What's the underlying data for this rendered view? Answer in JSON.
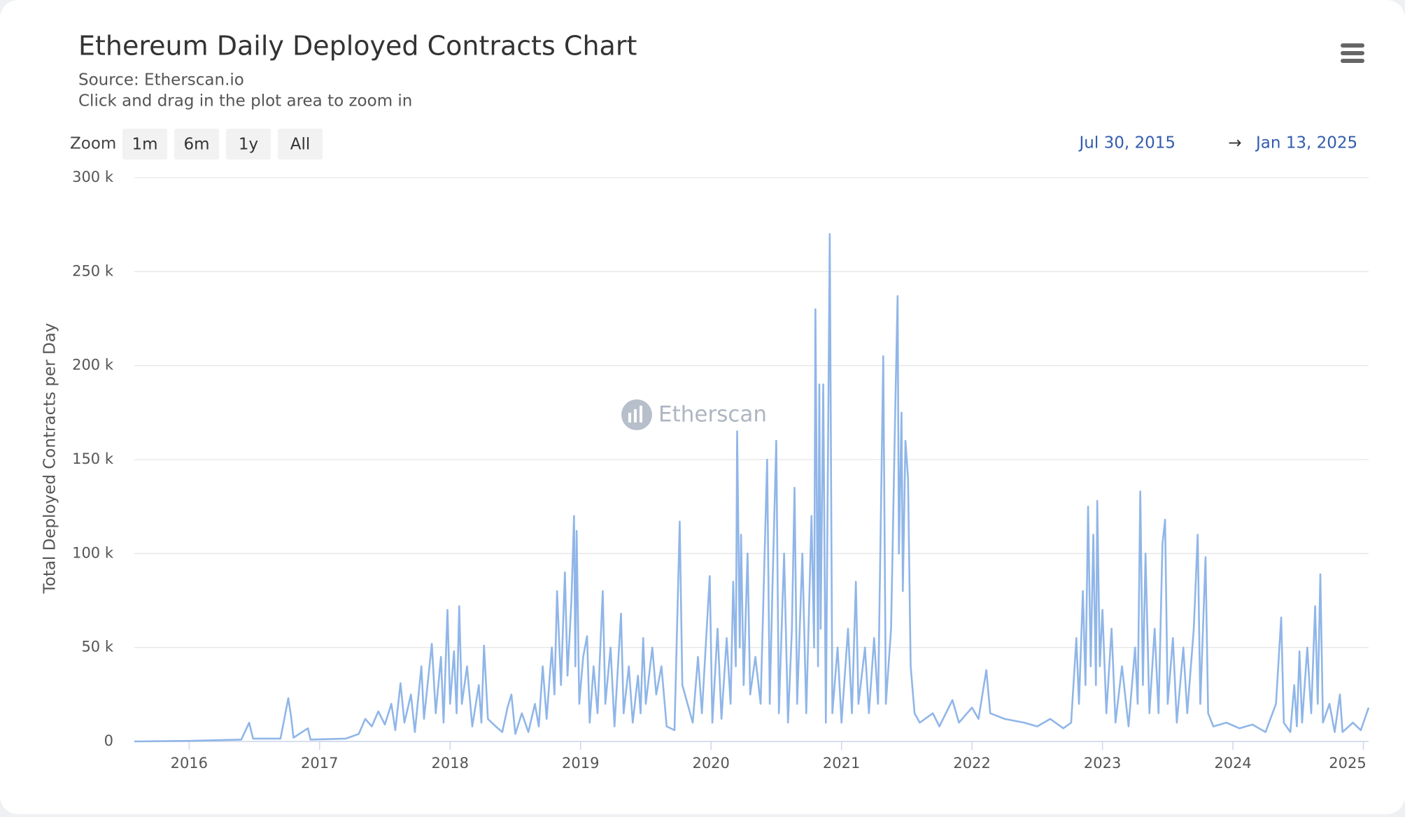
{
  "chart_data": {
    "type": "line",
    "title": "Ethereum Daily Deployed Contracts Chart",
    "subtitle": [
      "Source: Etherscan.io",
      "Click and drag in the plot area to zoom in"
    ],
    "range_selector": {
      "label": "Zoom",
      "buttons": [
        "1m",
        "6m",
        "1y",
        "All"
      ],
      "from": "Jul 30, 2015",
      "arrow": "→",
      "to": "Jan 13, 2025"
    },
    "watermark": "Etherscan",
    "y_label": "Total Deployed Contracts per Day",
    "color": "#90b6e8",
    "grid": true,
    "xlim": [
      2015.58,
      2025.04
    ],
    "xticks": [
      2016,
      2017,
      2018,
      2019,
      2020,
      2021,
      2022,
      2023,
      2024,
      2025
    ],
    "ylim": [
      0,
      300000
    ],
    "yticks": [
      0,
      {
        "value": 50000,
        "label": "50 k"
      },
      {
        "value": 100000,
        "label": "100 k"
      },
      {
        "value": 150000,
        "label": "150 k"
      },
      {
        "value": 200000,
        "label": "200 k"
      },
      {
        "value": 250000,
        "label": "250 k"
      },
      {
        "value": 300000,
        "label": "300 k"
      }
    ],
    "x": [
      2015.58,
      2016.0,
      2016.4,
      2016.46,
      2016.49,
      2016.7,
      2016.76,
      2016.78,
      2016.8,
      2016.91,
      2016.93,
      2017.2,
      2017.3,
      2017.35,
      2017.4,
      2017.45,
      2017.5,
      2017.55,
      2017.58,
      2017.62,
      2017.65,
      2017.7,
      2017.73,
      2017.78,
      2017.8,
      2017.86,
      2017.89,
      2017.93,
      2017.95,
      2017.98,
      2018.0,
      2018.03,
      2018.05,
      2018.07,
      2018.09,
      2018.13,
      2018.17,
      2018.22,
      2018.24,
      2018.26,
      2018.29,
      2018.35,
      2018.4,
      2018.44,
      2018.47,
      2018.5,
      2018.55,
      2018.6,
      2018.65,
      2018.68,
      2018.71,
      2018.74,
      2018.78,
      2018.8,
      2018.82,
      2018.85,
      2018.88,
      2018.9,
      2018.93,
      2018.95,
      2018.96,
      2018.97,
      2018.99,
      2019.02,
      2019.05,
      2019.07,
      2019.1,
      2019.13,
      2019.17,
      2019.19,
      2019.23,
      2019.26,
      2019.31,
      2019.33,
      2019.37,
      2019.4,
      2019.44,
      2019.46,
      2019.48,
      2019.5,
      2019.55,
      2019.58,
      2019.62,
      2019.66,
      2019.72,
      2019.76,
      2019.78,
      2019.82,
      2019.86,
      2019.9,
      2019.93,
      2019.99,
      2020.01,
      2020.05,
      2020.08,
      2020.12,
      2020.15,
      2020.17,
      2020.19,
      2020.2,
      2020.22,
      2020.23,
      2020.25,
      2020.28,
      2020.3,
      2020.34,
      2020.38,
      2020.43,
      2020.45,
      2020.47,
      2020.5,
      2020.52,
      2020.56,
      2020.59,
      2020.62,
      2020.64,
      2020.66,
      2020.7,
      2020.73,
      2020.77,
      2020.79,
      2020.8,
      2020.82,
      2020.83,
      2020.84,
      2020.86,
      2020.88,
      2020.91,
      2020.93,
      2020.97,
      2021.0,
      2021.05,
      2021.08,
      2021.11,
      2021.13,
      2021.18,
      2021.21,
      2021.25,
      2021.28,
      2021.32,
      2021.34,
      2021.38,
      2021.41,
      2021.43,
      2021.44,
      2021.46,
      2021.47,
      2021.49,
      2021.51,
      2021.53,
      2021.56,
      2021.6,
      2021.7,
      2021.75,
      2021.85,
      2021.9,
      2022.0,
      2022.05,
      2022.11,
      2022.14,
      2022.25,
      2022.4,
      2022.5,
      2022.6,
      2022.7,
      2022.76,
      2022.8,
      2022.82,
      2022.85,
      2022.87,
      2022.89,
      2022.91,
      2022.93,
      2022.95,
      2022.96,
      2022.98,
      2023.0,
      2023.03,
      2023.07,
      2023.1,
      2023.15,
      2023.2,
      2023.25,
      2023.27,
      2023.29,
      2023.31,
      2023.33,
      2023.36,
      2023.4,
      2023.43,
      2023.46,
      2023.48,
      2023.5,
      2023.54,
      2023.57,
      2023.62,
      2023.65,
      2023.7,
      2023.73,
      2023.75,
      2023.79,
      2023.81,
      2023.85,
      2023.95,
      2024.05,
      2024.15,
      2024.25,
      2024.33,
      2024.37,
      2024.39,
      2024.44,
      2024.47,
      2024.49,
      2024.51,
      2024.53,
      2024.57,
      2024.6,
      2024.63,
      2024.65,
      2024.67,
      2024.69,
      2024.74,
      2024.78,
      2024.82,
      2024.84,
      2024.92,
      2024.98,
      2025.04
    ],
    "values": [
      0,
      300,
      1000,
      10000,
      1500,
      1500,
      23000,
      14000,
      2000,
      7000,
      1000,
      1500,
      4000,
      12000,
      8000,
      16000,
      9000,
      20000,
      6000,
      31000,
      10000,
      25000,
      5000,
      40000,
      12000,
      52000,
      15000,
      45000,
      10000,
      70000,
      20000,
      48000,
      15000,
      72000,
      20000,
      40000,
      8000,
      30000,
      10000,
      51000,
      12000,
      8000,
      5000,
      18000,
      25000,
      4000,
      15000,
      5000,
      20000,
      8000,
      40000,
      12000,
      50000,
      25000,
      80000,
      30000,
      90000,
      35000,
      75000,
      120000,
      40000,
      112000,
      20000,
      45000,
      56000,
      10000,
      40000,
      15000,
      80000,
      20000,
      50000,
      8000,
      68000,
      15000,
      40000,
      10000,
      35000,
      15000,
      55000,
      20000,
      50000,
      25000,
      40000,
      8000,
      6000,
      117000,
      30000,
      20000,
      10000,
      45000,
      15000,
      88000,
      10000,
      60000,
      12000,
      55000,
      20000,
      85000,
      40000,
      165000,
      50000,
      110000,
      30000,
      100000,
      25000,
      45000,
      20000,
      150000,
      20000,
      80000,
      160000,
      15000,
      100000,
      10000,
      60000,
      135000,
      20000,
      100000,
      15000,
      120000,
      50000,
      230000,
      40000,
      190000,
      60000,
      190000,
      10000,
      270000,
      15000,
      50000,
      10000,
      60000,
      15000,
      85000,
      20000,
      50000,
      15000,
      55000,
      20000,
      205000,
      20000,
      60000,
      170000,
      237000,
      100000,
      175000,
      80000,
      160000,
      140000,
      40000,
      15000,
      10000,
      15000,
      8000,
      22000,
      10000,
      18000,
      12000,
      38000,
      15000,
      12000,
      10000,
      8000,
      12000,
      7000,
      10000,
      55000,
      20000,
      80000,
      30000,
      125000,
      40000,
      110000,
      30000,
      128000,
      40000,
      70000,
      15000,
      60000,
      10000,
      40000,
      8000,
      50000,
      20000,
      133000,
      30000,
      100000,
      15000,
      60000,
      15000,
      105000,
      118000,
      20000,
      55000,
      10000,
      50000,
      15000,
      60000,
      110000,
      20000,
      98000,
      15000,
      8000,
      10000,
      7000,
      9000,
      5000,
      20000,
      66000,
      10000,
      5000,
      30000,
      8000,
      48000,
      10000,
      50000,
      15000,
      72000,
      20000,
      89000,
      10000,
      20000,
      5000,
      25000,
      5000,
      10000,
      6000,
      18000
    ]
  }
}
